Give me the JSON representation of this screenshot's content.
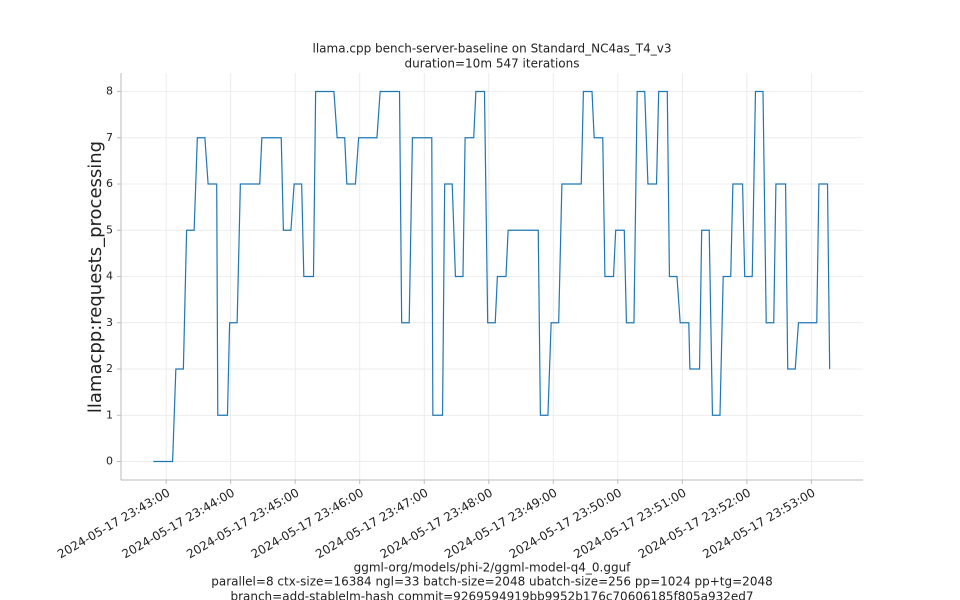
{
  "chart_data": {
    "type": "line",
    "title": "llama.cpp bench-server-baseline on Standard_NC4as_T4_v3",
    "subtitle": "duration=10m 547 iterations",
    "ylabel": "llamacpp:requests_processing",
    "footer": [
      "ggml-org/models/phi-2/ggml-model-q4_0.gguf",
      "parallel=8 ctx-size=16384 ngl=33 batch-size=2048 ubatch-size=256 pp=1024 pp+tg=2048",
      "branch=add-stablelm-hash commit=9269594919bb9952b176c70606185f805a932ed7"
    ],
    "x": [
      "2024-05-17 23:42:48",
      "2024-05-17 23:43:06",
      "2024-05-17 23:43:09",
      "2024-05-17 23:43:16",
      "2024-05-17 23:43:19",
      "2024-05-17 23:43:26",
      "2024-05-17 23:43:29",
      "2024-05-17 23:43:36",
      "2024-05-17 23:43:39",
      "2024-05-17 23:43:47",
      "2024-05-17 23:43:48",
      "2024-05-17 23:43:57",
      "2024-05-17 23:43:59",
      "2024-05-17 23:44:06",
      "2024-05-17 23:44:09",
      "2024-05-17 23:44:27",
      "2024-05-17 23:44:29",
      "2024-05-17 23:44:47",
      "2024-05-17 23:44:49",
      "2024-05-17 23:44:56",
      "2024-05-17 23:44:59",
      "2024-05-17 23:45:06",
      "2024-05-17 23:45:08",
      "2024-05-17 23:45:17",
      "2024-05-17 23:45:19",
      "2024-05-17 23:45:36",
      "2024-05-17 23:45:39",
      "2024-05-17 23:45:46",
      "2024-05-17 23:45:48",
      "2024-05-17 23:45:56",
      "2024-05-17 23:45:59",
      "2024-05-17 23:46:16",
      "2024-05-17 23:46:19",
      "2024-05-17 23:46:37",
      "2024-05-17 23:46:39",
      "2024-05-17 23:46:46",
      "2024-05-17 23:46:49",
      "2024-05-17 23:47:07",
      "2024-05-17 23:47:08",
      "2024-05-17 23:47:17",
      "2024-05-17 23:47:19",
      "2024-05-17 23:47:26",
      "2024-05-17 23:47:29",
      "2024-05-17 23:47:36",
      "2024-05-17 23:47:38",
      "2024-05-17 23:47:46",
      "2024-05-17 23:47:48",
      "2024-05-17 23:47:56",
      "2024-05-17 23:47:59",
      "2024-05-17 23:48:06",
      "2024-05-17 23:48:08",
      "2024-05-17 23:48:16",
      "2024-05-17 23:48:18",
      "2024-05-17 23:48:46",
      "2024-05-17 23:48:48",
      "2024-05-17 23:48:55",
      "2024-05-17 23:48:58",
      "2024-05-17 23:49:05",
      "2024-05-17 23:49:08",
      "2024-05-17 23:49:26",
      "2024-05-17 23:49:28",
      "2024-05-17 23:49:36",
      "2024-05-17 23:49:38",
      "2024-05-17 23:49:46",
      "2024-05-17 23:49:48",
      "2024-05-17 23:49:56",
      "2024-05-17 23:49:58",
      "2024-05-17 23:50:06",
      "2024-05-17 23:50:08",
      "2024-05-17 23:50:15",
      "2024-05-17 23:50:18",
      "2024-05-17 23:50:25",
      "2024-05-17 23:50:28",
      "2024-05-17 23:50:36",
      "2024-05-17 23:50:38",
      "2024-05-17 23:50:46",
      "2024-05-17 23:50:48",
      "2024-05-17 23:50:55",
      "2024-05-17 23:50:58",
      "2024-05-17 23:51:06",
      "2024-05-17 23:51:07",
      "2024-05-17 23:51:16",
      "2024-05-17 23:51:18",
      "2024-05-17 23:51:25",
      "2024-05-17 23:51:28",
      "2024-05-17 23:51:35",
      "2024-05-17 23:51:38",
      "2024-05-17 23:51:45",
      "2024-05-17 23:51:47",
      "2024-05-17 23:51:56",
      "2024-05-17 23:51:58",
      "2024-05-17 23:52:05",
      "2024-05-17 23:52:08",
      "2024-05-17 23:52:15",
      "2024-05-17 23:52:18",
      "2024-05-17 23:52:25",
      "2024-05-17 23:52:27",
      "2024-05-17 23:52:36",
      "2024-05-17 23:52:38",
      "2024-05-17 23:52:45",
      "2024-05-17 23:52:48",
      "2024-05-17 23:53:05",
      "2024-05-17 23:53:07",
      "2024-05-17 23:53:15",
      "2024-05-17 23:53:17"
    ],
    "series": [
      {
        "color": "#1f77b4",
        "values": [
          0,
          0,
          2,
          2,
          5,
          5,
          7,
          7,
          6,
          6,
          1,
          1,
          3,
          3,
          6,
          6,
          7,
          7,
          5,
          5,
          6,
          6,
          4,
          4,
          8,
          8,
          7,
          7,
          6,
          6,
          7,
          7,
          8,
          8,
          3,
          3,
          7,
          7,
          1,
          1,
          6,
          6,
          4,
          4,
          7,
          7,
          8,
          8,
          3,
          3,
          4,
          4,
          5,
          5,
          1,
          1,
          3,
          3,
          6,
          6,
          8,
          8,
          7,
          7,
          4,
          4,
          5,
          5,
          3,
          3,
          8,
          8,
          6,
          6,
          8,
          8,
          4,
          4,
          3,
          3,
          2,
          2,
          5,
          5,
          1,
          1,
          4,
          4,
          6,
          6,
          4,
          4,
          8,
          8,
          3,
          3,
          6,
          6,
          2,
          2,
          3,
          3,
          6,
          6,
          2
        ]
      }
    ],
    "xlim": [
      "2024-05-17 23:42:18",
      "2024-05-17 23:53:48"
    ],
    "xticks": [
      "2024-05-17 23:43:00",
      "2024-05-17 23:44:00",
      "2024-05-17 23:45:00",
      "2024-05-17 23:46:00",
      "2024-05-17 23:47:00",
      "2024-05-17 23:48:00",
      "2024-05-17 23:49:00",
      "2024-05-17 23:50:00",
      "2024-05-17 23:51:00",
      "2024-05-17 23:52:00",
      "2024-05-17 23:53:00"
    ],
    "ylim": [
      -0.4,
      8.4
    ],
    "yticks": [
      0,
      1,
      2,
      3,
      4,
      5,
      6,
      7,
      8
    ],
    "grid": true
  }
}
